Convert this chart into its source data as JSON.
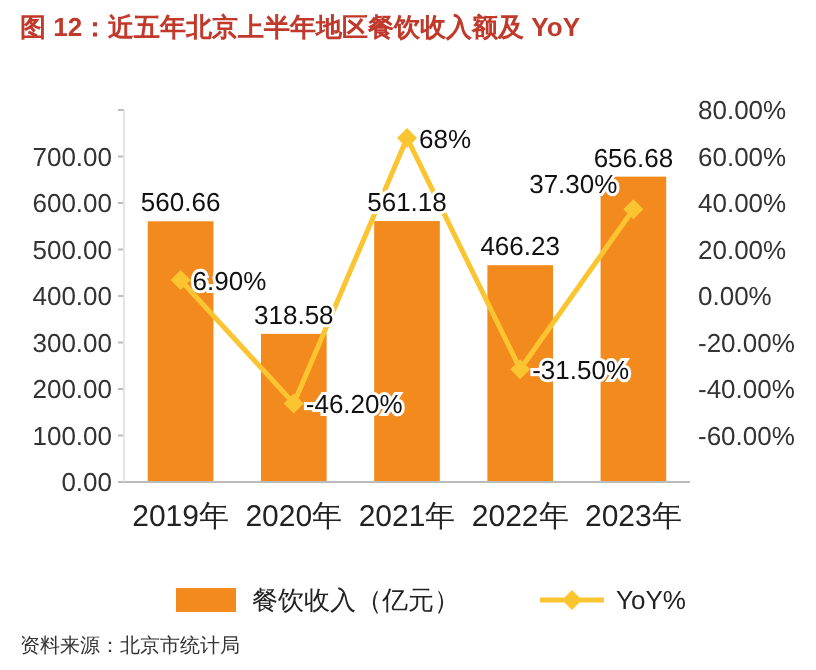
{
  "chart_data": {
    "type": "bar",
    "title": "图 12：近五年北京上半年地区餐饮收入额及 YoY",
    "categories": [
      "2019年",
      "2020年",
      "2021年",
      "2022年",
      "2023年"
    ],
    "series": [
      {
        "name": "餐饮收入（亿元）",
        "color": "#f28a1e",
        "values": [
          560.66,
          318.58,
          561.18,
          466.23,
          656.68
        ],
        "value_labels": [
          "560.66",
          "318.58",
          "561.18",
          "466.23",
          "656.68"
        ]
      },
      {
        "name": "YoY%",
        "type": "line",
        "axis": "y2",
        "color": "#fbc431",
        "marker": "diamond",
        "values": [
          6.9,
          -46.2,
          68,
          -31.5,
          37.3
        ],
        "value_labels": [
          "6.90%",
          "-46.20%",
          "68%",
          "-31.50%",
          "37.30%"
        ]
      }
    ],
    "ylim": [
      0,
      800
    ],
    "yticks": [
      {
        "value": 0,
        "label": "0.00"
      },
      {
        "value": 100,
        "label": "100.00"
      },
      {
        "value": 200,
        "label": "200.00"
      },
      {
        "value": 300,
        "label": "300.00"
      },
      {
        "value": 400,
        "label": "400.00"
      },
      {
        "value": 500,
        "label": "500.00"
      },
      {
        "value": 600,
        "label": "600.00"
      },
      {
        "value": 700,
        "label": "700.00"
      },
      {
        "value": 800,
        "label": null
      }
    ],
    "y2lim": [
      -80,
      80
    ],
    "y2ticks": [
      {
        "value": -60,
        "label": "-60.00%"
      },
      {
        "value": -40,
        "label": "-40.00%"
      },
      {
        "value": -20,
        "label": "-20.00%"
      },
      {
        "value": 0,
        "label": "0.00%"
      },
      {
        "value": 20,
        "label": "20.00%"
      },
      {
        "value": 40,
        "label": "40.00%"
      },
      {
        "value": 60,
        "label": "60.00%"
      },
      {
        "value": 80,
        "label": "80.00%"
      }
    ],
    "legend": "bottom",
    "grid": false,
    "annotations": [
      "资料来源：北京市统计局"
    ]
  }
}
